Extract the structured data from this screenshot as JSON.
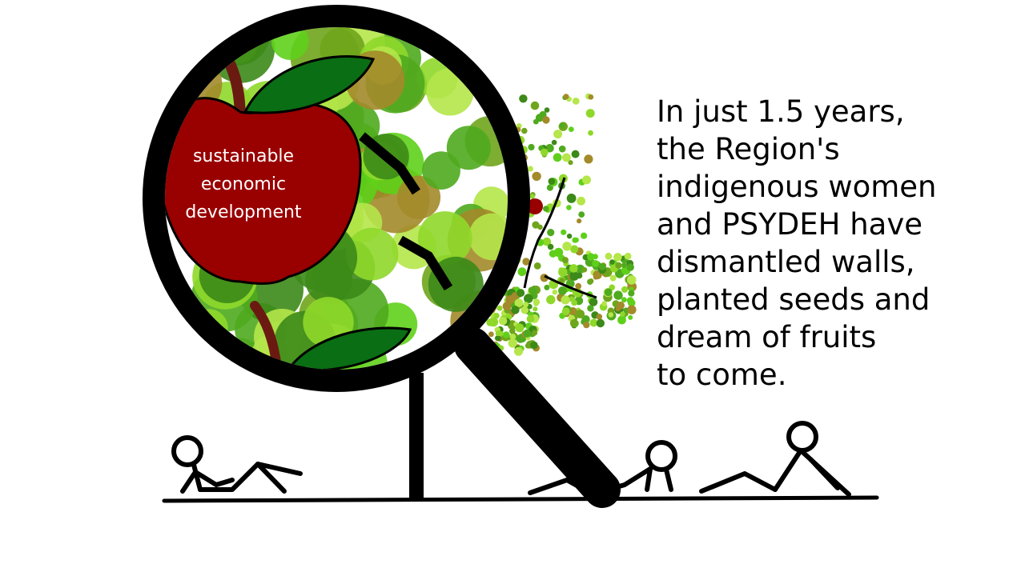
{
  "apple_label": {
    "lines": [
      "sustainable",
      "economic",
      "development"
    ]
  },
  "caption": {
    "lines": [
      "In just 1.5 years,",
      "the Region's",
      "indigenous women",
      "and PSYDEH have",
      "dismantled walls,",
      "planted seeds and",
      "dream of fruits",
      "to come."
    ]
  },
  "colors": {
    "apple_red": "#990000",
    "leaf_green": "#0a6e14",
    "foliage": [
      "#8fd82a",
      "#4faa1e",
      "#b5e64a",
      "#6fa51c",
      "#a38a2a",
      "#5fd01a",
      "#3c8a18"
    ],
    "ink": "#000000"
  }
}
